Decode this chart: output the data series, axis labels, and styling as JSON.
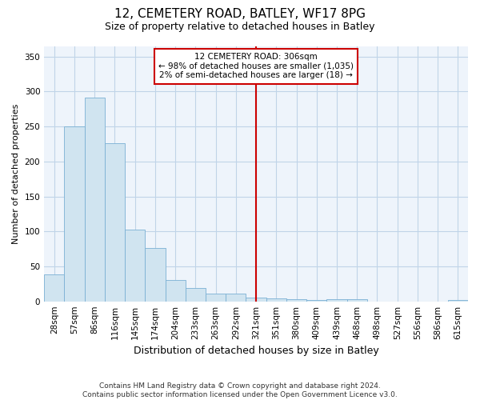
{
  "title1": "12, CEMETERY ROAD, BATLEY, WF17 8PG",
  "title2": "Size of property relative to detached houses in Batley",
  "xlabel": "Distribution of detached houses by size in Batley",
  "ylabel": "Number of detached properties",
  "bar_color": "#d0e4f0",
  "bar_edge_color": "#7ab0d4",
  "grid_color": "#c0d4e8",
  "bg_color": "#eef4fb",
  "vline_color": "#cc0000",
  "annotation_text": "12 CEMETERY ROAD: 306sqm\n← 98% of detached houses are smaller (1,035)\n2% of semi-detached houses are larger (18) →",
  "annotation_box_color": "#cc0000",
  "categories": [
    "28sqm",
    "57sqm",
    "86sqm",
    "116sqm",
    "145sqm",
    "174sqm",
    "204sqm",
    "233sqm",
    "263sqm",
    "292sqm",
    "321sqm",
    "351sqm",
    "380sqm",
    "409sqm",
    "439sqm",
    "468sqm",
    "498sqm",
    "527sqm",
    "556sqm",
    "586sqm",
    "615sqm"
  ],
  "values": [
    38,
    250,
    291,
    226,
    103,
    76,
    30,
    19,
    11,
    11,
    5,
    4,
    3,
    2,
    3,
    3,
    0,
    0,
    0,
    0,
    2
  ],
  "vline_index": 10,
  "ylim": [
    0,
    365
  ],
  "yticks": [
    0,
    50,
    100,
    150,
    200,
    250,
    300,
    350
  ],
  "footnote": "Contains HM Land Registry data © Crown copyright and database right 2024.\nContains public sector information licensed under the Open Government Licence v3.0.",
  "title1_fontsize": 11,
  "title2_fontsize": 9,
  "ylabel_fontsize": 8,
  "xlabel_fontsize": 9,
  "tick_fontsize": 7.5,
  "footnote_fontsize": 6.5
}
